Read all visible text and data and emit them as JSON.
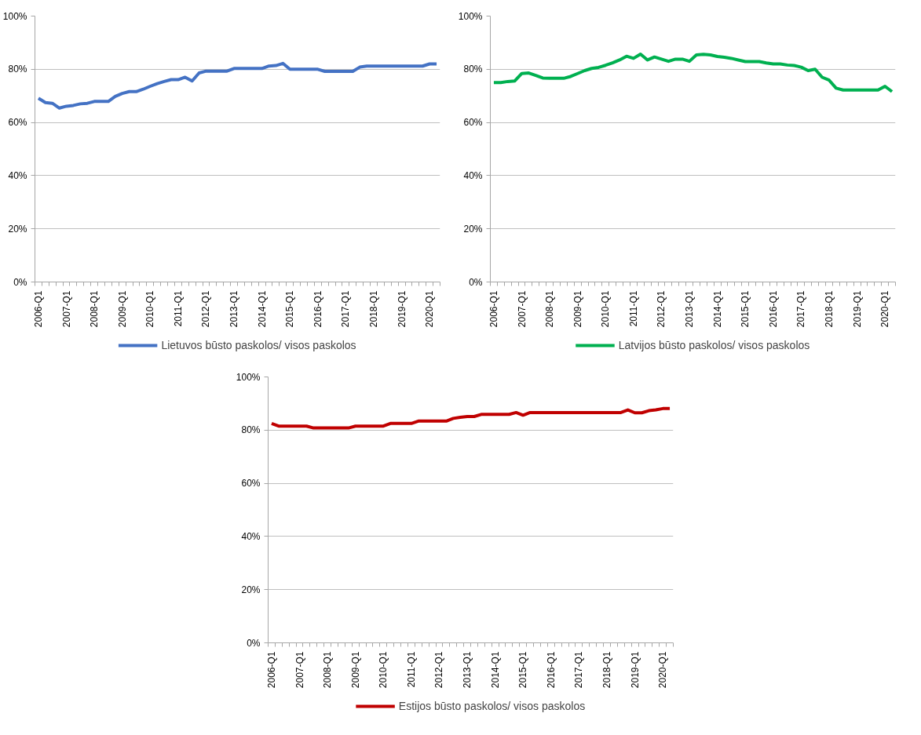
{
  "chart_data": [
    {
      "type": "line",
      "categories": [
        "2006-Q1",
        null,
        null,
        null,
        "2007-Q1",
        null,
        null,
        null,
        "2008-Q1",
        null,
        null,
        null,
        "2009-Q1",
        null,
        null,
        null,
        "2010-Q1",
        null,
        null,
        null,
        "2011-Q1",
        null,
        null,
        null,
        "2012-Q1",
        null,
        null,
        null,
        "2013-Q1",
        null,
        null,
        null,
        "2014-Q1",
        null,
        null,
        null,
        "2015-Q1",
        null,
        null,
        null,
        "2016-Q1",
        null,
        null,
        null,
        "2017-Q1",
        null,
        null,
        null,
        "2018-Q1",
        null,
        null,
        null,
        "2019-Q1",
        null,
        null,
        null,
        "2020-Q1",
        null
      ],
      "series": [
        {
          "name": "Lietuvos būsto paskolos/ visos paskolos",
          "color": "#4472c4",
          "values": [
            69.1,
            67.5,
            67.2,
            65.4,
            66.1,
            66.4,
            67,
            67.2,
            67.9,
            67.9,
            67.9,
            69.8,
            70.9,
            71.6,
            71.6,
            72.5,
            73.6,
            74.6,
            75.4,
            76.1,
            76.1,
            77,
            75.6,
            78.6,
            79.3,
            79.3,
            79.3,
            79.3,
            80.3,
            80.3,
            80.3,
            80.3,
            80.3,
            81.2,
            81.4,
            82.2,
            80,
            80,
            80,
            80,
            80,
            79.2,
            79.2,
            79.2,
            79.2,
            79.2,
            80.8,
            81.2,
            81.2,
            81.2,
            81.2,
            81.2,
            81.2,
            81.2,
            81.2,
            81.2,
            82,
            82
          ]
        }
      ],
      "ylim": [
        0,
        100
      ],
      "yticks": [
        {
          "value": 0,
          "label": "0%"
        },
        {
          "value": 20,
          "label": "20%"
        },
        {
          "value": 40,
          "label": "40%"
        },
        {
          "value": 60,
          "label": "60%"
        },
        {
          "value": 80,
          "label": "80%"
        },
        {
          "value": 100,
          "label": "100%"
        }
      ],
      "grid": "y",
      "legend": "bottom"
    },
    {
      "type": "line",
      "categories": [
        "2006-Q1",
        null,
        null,
        null,
        "2007-Q1",
        null,
        null,
        null,
        "2008-Q1",
        null,
        null,
        null,
        "2009-Q1",
        null,
        null,
        null,
        "2010-Q1",
        null,
        null,
        null,
        "2011-Q1",
        null,
        null,
        null,
        "2012-Q1",
        null,
        null,
        null,
        "2013-Q1",
        null,
        null,
        null,
        "2014-Q1",
        null,
        null,
        null,
        "2015-Q1",
        null,
        null,
        null,
        "2016-Q1",
        null,
        null,
        null,
        "2017-Q1",
        null,
        null,
        null,
        "2018-Q1",
        null,
        null,
        null,
        "2019-Q1",
        null,
        null,
        null,
        "2020-Q1",
        null
      ],
      "series": [
        {
          "name": "Latvijos būsto paskolos/ visos paskolos",
          "color": "#00b050",
          "values": [
            75,
            75,
            75.4,
            75.6,
            78.4,
            78.6,
            77.7,
            76.7,
            76.6,
            76.6,
            76.6,
            77.3,
            78.4,
            79.5,
            80.3,
            80.7,
            81.5,
            82.4,
            83.5,
            84.9,
            84.1,
            85.7,
            83.5,
            84.6,
            83.8,
            83,
            83.8,
            83.8,
            83,
            85.4,
            85.6,
            85.4,
            84.8,
            84.5,
            84.1,
            83.5,
            82.9,
            82.9,
            82.9,
            82.4,
            82,
            82,
            81.6,
            81.4,
            80.8,
            79.5,
            80,
            77,
            75.9,
            72.9,
            72.2,
            72.2,
            72.2,
            72.2,
            72.2,
            72.2,
            73.6,
            71.6
          ]
        }
      ],
      "ylim": [
        0,
        100
      ],
      "yticks": [
        {
          "value": 0,
          "label": "0%"
        },
        {
          "value": 20,
          "label": "20%"
        },
        {
          "value": 40,
          "label": "40%"
        },
        {
          "value": 60,
          "label": "60%"
        },
        {
          "value": 80,
          "label": "80%"
        },
        {
          "value": 100,
          "label": "100%"
        }
      ],
      "grid": "y",
      "legend": "bottom"
    },
    {
      "type": "line",
      "categories": [
        "2006-Q1",
        null,
        null,
        null,
        "2007-Q1",
        null,
        null,
        null,
        "2008-Q1",
        null,
        null,
        null,
        "2009-Q1",
        null,
        null,
        null,
        "2010-Q1",
        null,
        null,
        null,
        "2011-Q1",
        null,
        null,
        null,
        "2012-Q1",
        null,
        null,
        null,
        "2013-Q1",
        null,
        null,
        null,
        "2014-Q1",
        null,
        null,
        null,
        "2015-Q1",
        null,
        null,
        null,
        "2016-Q1",
        null,
        null,
        null,
        "2017-Q1",
        null,
        null,
        null,
        "2018-Q1",
        null,
        null,
        null,
        "2019-Q1",
        null,
        null,
        null,
        "2020-Q1",
        null
      ],
      "series": [
        {
          "name": "Estijos būsto paskolos/ visos paskolos",
          "color": "#c00000",
          "values": [
            82.5,
            81.5,
            81.5,
            81.5,
            81.5,
            81.5,
            80.8,
            80.8,
            80.8,
            80.8,
            80.8,
            80.8,
            81.5,
            81.5,
            81.5,
            81.5,
            81.5,
            82.5,
            82.5,
            82.5,
            82.5,
            83.4,
            83.4,
            83.4,
            83.4,
            83.4,
            84.4,
            84.8,
            85.1,
            85.1,
            85.9,
            85.9,
            85.9,
            85.9,
            85.9,
            86.6,
            85.6,
            86.6,
            86.6,
            86.6,
            86.6,
            86.6,
            86.6,
            86.6,
            86.6,
            86.6,
            86.6,
            86.6,
            86.6,
            86.6,
            86.6,
            87.6,
            86.5,
            86.5,
            87.3,
            87.6,
            88.1,
            88.1
          ]
        }
      ],
      "ylim": [
        0,
        100
      ],
      "yticks": [
        {
          "value": 0,
          "label": "0%"
        },
        {
          "value": 20,
          "label": "20%"
        },
        {
          "value": 40,
          "label": "40%"
        },
        {
          "value": 60,
          "label": "60%"
        },
        {
          "value": 80,
          "label": "80%"
        },
        {
          "value": 100,
          "label": "100%"
        }
      ],
      "grid": "y",
      "legend": "bottom"
    }
  ]
}
